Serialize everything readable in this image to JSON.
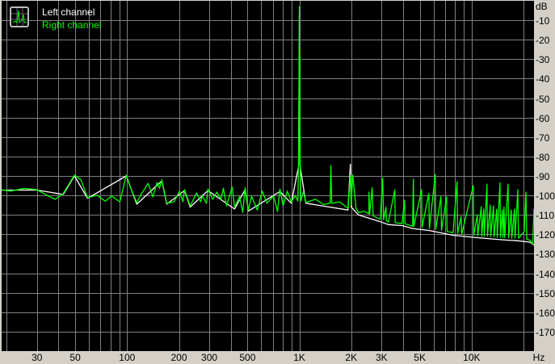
{
  "chart_data": {
    "type": "line",
    "title": "",
    "xlabel": "Hz",
    "ylabel": "dB",
    "x_scale": "log",
    "xlim": [
      18.7,
      23000
    ],
    "ylim": [
      -180,
      0
    ],
    "grid": true,
    "legend_placement": "top-left",
    "x_tick_labels": [
      {
        "value": 30,
        "label": "30"
      },
      {
        "value": 50,
        "label": "50"
      },
      {
        "value": 100,
        "label": "100"
      },
      {
        "value": 200,
        "label": "200"
      },
      {
        "value": 300,
        "label": "300"
      },
      {
        "value": 500,
        "label": "500"
      },
      {
        "value": 1000,
        "label": "1K"
      },
      {
        "value": 2000,
        "label": "2K"
      },
      {
        "value": 3000,
        "label": "3K"
      },
      {
        "value": 5000,
        "label": "5K"
      },
      {
        "value": 10000,
        "label": "10K"
      }
    ],
    "x_grid": [
      20,
      30,
      40,
      50,
      60,
      70,
      80,
      90,
      100,
      200,
      300,
      400,
      500,
      600,
      700,
      800,
      900,
      1000,
      2000,
      3000,
      4000,
      5000,
      6000,
      7000,
      8000,
      9000,
      10000,
      20000
    ],
    "y_ticks": [
      -10,
      -20,
      -30,
      -40,
      -50,
      -60,
      -70,
      -80,
      -90,
      -100,
      -110,
      -120,
      -130,
      -140,
      -150,
      -160,
      -170
    ],
    "y_tick_labels": [
      "-10",
      "-20",
      "-30",
      "-40",
      "-50",
      "-60",
      "-70",
      "-80",
      "-90",
      "-100",
      "-110",
      "-120",
      "-130",
      "-140",
      "-150",
      "-160",
      "-170"
    ],
    "series": [
      {
        "name": "Left channel",
        "color": "#ffffff",
        "points": [
          [
            18.7,
            -97.3
          ],
          [
            29.8,
            -97.2
          ],
          [
            42.6,
            -99.5
          ],
          [
            49.5,
            -90
          ],
          [
            58.9,
            -101.5
          ],
          [
            98.9,
            -90
          ],
          [
            113.8,
            -104.5
          ],
          [
            159.2,
            -92.5
          ],
          [
            170,
            -104.5
          ],
          [
            215.4,
            -97.5
          ],
          [
            232.3,
            -106
          ],
          [
            294.6,
            -97.5
          ],
          [
            421,
            -107
          ],
          [
            484.3,
            -97
          ],
          [
            505.9,
            -108
          ],
          [
            771.3,
            -98
          ],
          [
            897.9,
            -104
          ],
          [
            990,
            -85
          ],
          [
            1000,
            -5
          ],
          [
            1010,
            -85
          ],
          [
            1091,
            -104
          ],
          [
            1383,
            -105.5
          ],
          [
            1914,
            -107.5
          ],
          [
            1977,
            -84
          ],
          [
            2000,
            -106
          ],
          [
            2203,
            -110
          ],
          [
            2946,
            -113.5
          ],
          [
            3283,
            -115
          ],
          [
            3945,
            -115.5
          ],
          [
            4541,
            -117
          ],
          [
            5641,
            -118
          ],
          [
            7798,
            -120.5
          ],
          [
            10210,
            -121.5
          ],
          [
            12820,
            -122.3
          ],
          [
            16260,
            -123
          ],
          [
            18530,
            -123.3
          ],
          [
            21770,
            -124
          ],
          [
            23000,
            -125.5
          ]
        ]
      },
      {
        "name": "Right channel",
        "color": "#00ff00",
        "points": [
          [
            18.7,
            -97.1
          ],
          [
            21.1,
            -97.8
          ],
          [
            25.3,
            -96.4
          ],
          [
            29.8,
            -97
          ],
          [
            35.1,
            -100.4
          ],
          [
            38.2,
            -102
          ],
          [
            42.6,
            -99
          ],
          [
            49.5,
            -89.6
          ],
          [
            54,
            -92
          ],
          [
            58.9,
            -101.2
          ],
          [
            67,
            -99.9
          ],
          [
            74.7,
            -103
          ],
          [
            81.4,
            -100.3
          ],
          [
            90.8,
            -103.3
          ],
          [
            98.9,
            -89.6
          ],
          [
            106.7,
            -97.8
          ],
          [
            113.8,
            -103.7
          ],
          [
            121.5,
            -99
          ],
          [
            132.5,
            -93.8
          ],
          [
            141.3,
            -100.8
          ],
          [
            149.2,
            -93.4
          ],
          [
            154.1,
            -96.3
          ],
          [
            159.2,
            -92
          ],
          [
            170,
            -104.1
          ],
          [
            187.2,
            -103.3
          ],
          [
            201.8,
            -97.8
          ],
          [
            210.8,
            -103.3
          ],
          [
            215.4,
            -97
          ],
          [
            232.3,
            -105.4
          ],
          [
            253.4,
            -98.8
          ],
          [
            267.3,
            -103.3
          ],
          [
            273.3,
            -100.3
          ],
          [
            288.7,
            -104
          ],
          [
            294.6,
            -96.7
          ],
          [
            314.5,
            -102
          ],
          [
            331.9,
            -98.3
          ],
          [
            350.6,
            -102
          ],
          [
            362,
            -96.3
          ],
          [
            377.8,
            -105.4
          ],
          [
            407.5,
            -95.7
          ],
          [
            421,
            -106
          ],
          [
            449.6,
            -100.6
          ],
          [
            469.1,
            -108.8
          ],
          [
            484.3,
            -96.1
          ],
          [
            505.9,
            -107.5
          ],
          [
            528.1,
            -100.4
          ],
          [
            569.8,
            -107.5
          ],
          [
            608.1,
            -97.8
          ],
          [
            648.9,
            -104
          ],
          [
            707.5,
            -100.3
          ],
          [
            746.6,
            -108.2
          ],
          [
            771.3,
            -96.7
          ],
          [
            805.4,
            -105.4
          ],
          [
            850.4,
            -97.8
          ],
          [
            897.9,
            -103.3
          ],
          [
            947.8,
            -100
          ],
          [
            980,
            -103
          ],
          [
            990,
            -80
          ],
          [
            1000,
            -3
          ],
          [
            1010,
            -80
          ],
          [
            1020,
            -103
          ],
          [
            1055,
            -98
          ],
          [
            1091,
            -103.6
          ],
          [
            1241,
            -102
          ],
          [
            1383,
            -104.7
          ],
          [
            1510,
            -104
          ],
          [
            1524,
            -84.6
          ],
          [
            1540,
            -104
          ],
          [
            1717,
            -103.3
          ],
          [
            1914,
            -106.6
          ],
          [
            1977,
            -89.5
          ],
          [
            2000,
            -105
          ],
          [
            2043,
            -89.6
          ],
          [
            2133,
            -106.6
          ],
          [
            2203,
            -108.8
          ],
          [
            2377,
            -108.2
          ],
          [
            2535,
            -109.5
          ],
          [
            2535,
            -98.3
          ],
          [
            2560,
            -109.5
          ],
          [
            2646,
            -96
          ],
          [
            2680,
            -110.5
          ],
          [
            2946,
            -112.3
          ],
          [
            3046,
            -91.2
          ],
          [
            3080,
            -112.5
          ],
          [
            3178,
            -106
          ],
          [
            3200,
            -113
          ],
          [
            3283,
            -113.7
          ],
          [
            3579,
            -97.1
          ],
          [
            3600,
            -114
          ],
          [
            3945,
            -114.4
          ],
          [
            4076,
            -102.4
          ],
          [
            4100,
            -114.6
          ],
          [
            4541,
            -115.8
          ],
          [
            4589,
            -91.6
          ],
          [
            4620,
            -116
          ],
          [
            5117,
            -97.1
          ],
          [
            5150,
            -116.5
          ],
          [
            5641,
            -99
          ],
          [
            5680,
            -117
          ],
          [
            6147,
            -89.2
          ],
          [
            6190,
            -117.5
          ],
          [
            6633,
            -100.6
          ],
          [
            6680,
            -118
          ],
          [
            7150,
            -100.8
          ],
          [
            7200,
            -118.5
          ],
          [
            7798,
            -119.2
          ],
          [
            8227,
            -93
          ],
          [
            8280,
            -119.5
          ],
          [
            8686,
            -110.8
          ],
          [
            8750,
            -120
          ],
          [
            10210,
            -95
          ],
          [
            10280,
            -120.5
          ],
          [
            10780,
            -110
          ],
          [
            10850,
            -120.7
          ],
          [
            11370,
            -105.8
          ],
          [
            11450,
            -121
          ],
          [
            11750,
            -107
          ],
          [
            11830,
            -121
          ],
          [
            12270,
            -94.2
          ],
          [
            12350,
            -121
          ],
          [
            12820,
            -105
          ],
          [
            12900,
            -121.2
          ],
          [
            13390,
            -105.4
          ],
          [
            13480,
            -121.3
          ],
          [
            13980,
            -107
          ],
          [
            14080,
            -121.5
          ],
          [
            14600,
            -93.6
          ],
          [
            14700,
            -121.5
          ],
          [
            15070,
            -107.5
          ],
          [
            15200,
            -121.6
          ],
          [
            15410,
            -106
          ],
          [
            15550,
            -121.7
          ],
          [
            16260,
            -94.2
          ],
          [
            16400,
            -121.8
          ],
          [
            16980,
            -107.5
          ],
          [
            17100,
            -122
          ],
          [
            17740,
            -107
          ],
          [
            17850,
            -122
          ],
          [
            18530,
            -97.1
          ],
          [
            18700,
            -122
          ],
          [
            20190,
            -118.7
          ],
          [
            20640,
            -98.3
          ],
          [
            20900,
            -122.5
          ],
          [
            21770,
            -123
          ],
          [
            22600,
            -125
          ],
          [
            23000,
            -107
          ]
        ]
      }
    ]
  },
  "colors": {
    "background": "#d4d0c8",
    "plot": "#000000",
    "grid": "#808080"
  },
  "legend_icon": "spectrum-icon"
}
